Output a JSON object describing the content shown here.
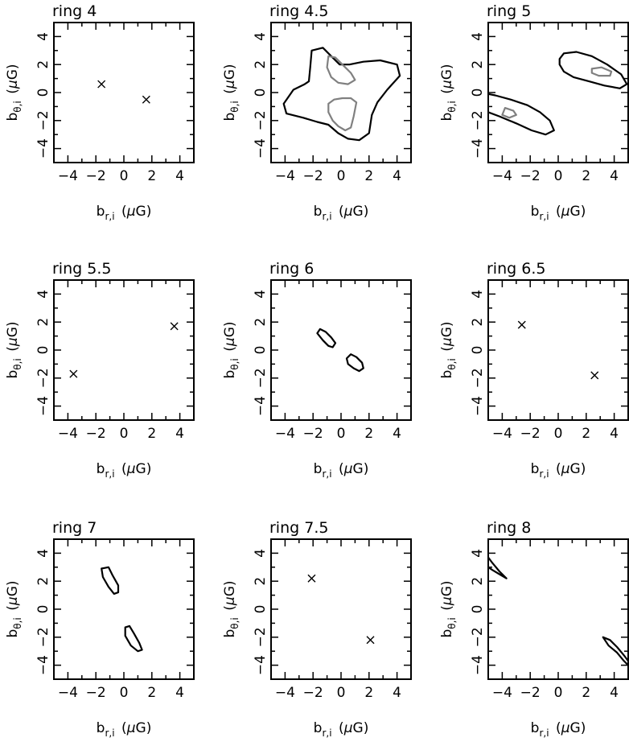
{
  "axis_label_parts": {
    "b": "b",
    "sub_r": "r,i",
    "sub_theta": "θ,i",
    "unit_open": "(",
    "mu": "μ",
    "unit_G": "G",
    "unit_close": ")"
  },
  "chart_data": [
    {
      "type": "contour",
      "title": "ring 4",
      "xlabel": "b_r,i (μG)",
      "ylabel": "b_θ,i (μG)",
      "xlim": [
        -5,
        5
      ],
      "ylim": [
        -5,
        5
      ],
      "xticks": [
        -4,
        -2,
        0,
        2,
        4
      ],
      "yticks": [
        -4,
        -2,
        0,
        2,
        4
      ],
      "markers": [
        {
          "x": -1.6,
          "y": 0.6
        },
        {
          "x": 1.6,
          "y": -0.5
        }
      ],
      "contours": []
    },
    {
      "type": "contour",
      "title": "ring 4.5",
      "xlabel": "b_r,i (μG)",
      "ylabel": "b_θ,i (μG)",
      "xlim": [
        -5,
        5
      ],
      "ylim": [
        -5,
        5
      ],
      "xticks": [
        -4,
        -2,
        0,
        2,
        4
      ],
      "yticks": [
        -4,
        -2,
        0,
        2,
        4
      ],
      "markers": [],
      "contours": [
        {
          "level": "outer",
          "color": "#000000",
          "points": [
            [
              -2.1,
              3.0
            ],
            [
              -1.3,
              3.2
            ],
            [
              -0.7,
              2.6
            ],
            [
              -0.1,
              2.0
            ],
            [
              0.6,
              2.0
            ],
            [
              1.6,
              2.2
            ],
            [
              2.8,
              2.3
            ],
            [
              4.0,
              2.0
            ],
            [
              4.2,
              1.2
            ],
            [
              3.3,
              0.2
            ],
            [
              2.6,
              -0.7
            ],
            [
              2.2,
              -1.6
            ],
            [
              2.0,
              -2.9
            ],
            [
              1.3,
              -3.4
            ],
            [
              0.5,
              -3.3
            ],
            [
              -0.2,
              -2.9
            ],
            [
              -0.9,
              -2.3
            ],
            [
              -1.7,
              -2.1
            ],
            [
              -2.7,
              -1.8
            ],
            [
              -3.9,
              -1.5
            ],
            [
              -4.1,
              -0.8
            ],
            [
              -3.4,
              0.2
            ],
            [
              -2.6,
              0.6
            ],
            [
              -2.3,
              0.8
            ],
            [
              -2.2,
              1.8
            ],
            [
              -2.1,
              3.0
            ]
          ]
        },
        {
          "level": "inner",
          "color": "#808080",
          "points": [
            [
              -0.9,
              2.6
            ],
            [
              -0.4,
              2.5
            ],
            [
              0.1,
              2.0
            ],
            [
              0.7,
              1.4
            ],
            [
              1.0,
              0.9
            ],
            [
              0.5,
              0.6
            ],
            [
              -0.2,
              0.7
            ],
            [
              -0.7,
              1.1
            ],
            [
              -1.0,
              1.8
            ],
            [
              -0.9,
              2.6
            ]
          ]
        },
        {
          "level": "inner",
          "color": "#808080",
          "points": [
            [
              -0.9,
              -0.8
            ],
            [
              -0.5,
              -0.5
            ],
            [
              0.1,
              -0.4
            ],
            [
              0.7,
              -0.4
            ],
            [
              1.1,
              -0.7
            ],
            [
              0.9,
              -1.7
            ],
            [
              0.7,
              -2.5
            ],
            [
              0.3,
              -2.7
            ],
            [
              -0.2,
              -2.4
            ],
            [
              -0.6,
              -2.0
            ],
            [
              -0.9,
              -1.4
            ],
            [
              -0.9,
              -0.8
            ]
          ]
        }
      ]
    },
    {
      "type": "contour",
      "title": "ring 5",
      "xlabel": "b_r,i (μG)",
      "ylabel": "b_θ,i (μG)",
      "xlim": [
        -5,
        5
      ],
      "ylim": [
        -5,
        5
      ],
      "xticks": [
        -4,
        -2,
        0,
        2,
        4
      ],
      "yticks": [
        -4,
        -2,
        0,
        2,
        4
      ],
      "markers": [],
      "contours": [
        {
          "level": "outer",
          "color": "#000000",
          "points": [
            [
              0.1,
              2.4
            ],
            [
              0.4,
              2.8
            ],
            [
              1.3,
              2.9
            ],
            [
              2.4,
              2.6
            ],
            [
              3.5,
              2.0
            ],
            [
              4.5,
              1.3
            ],
            [
              4.9,
              0.6
            ],
            [
              4.4,
              0.3
            ],
            [
              3.3,
              0.5
            ],
            [
              2.2,
              0.8
            ],
            [
              1.1,
              1.1
            ],
            [
              0.4,
              1.5
            ],
            [
              0.1,
              2.0
            ],
            [
              0.1,
              2.4
            ]
          ]
        },
        {
          "level": "inner",
          "color": "#808080",
          "points": [
            [
              2.4,
              1.7
            ],
            [
              3.1,
              1.8
            ],
            [
              3.8,
              1.5
            ],
            [
              3.7,
              1.2
            ],
            [
              2.9,
              1.2
            ],
            [
              2.4,
              1.4
            ],
            [
              2.4,
              1.7
            ]
          ]
        },
        {
          "level": "outer",
          "color": "#000000",
          "points": [
            [
              -5.0,
              -0.1
            ],
            [
              -4.5,
              -0.2
            ],
            [
              -3.4,
              -0.5
            ],
            [
              -2.2,
              -0.9
            ],
            [
              -1.3,
              -1.4
            ],
            [
              -0.6,
              -2.0
            ],
            [
              -0.3,
              -2.7
            ],
            [
              -0.9,
              -3.0
            ],
            [
              -1.9,
              -2.7
            ],
            [
              -3.0,
              -2.2
            ],
            [
              -4.2,
              -1.7
            ],
            [
              -5.0,
              -1.4
            ]
          ]
        },
        {
          "level": "inner",
          "color": "#808080",
          "points": [
            [
              -3.8,
              -1.1
            ],
            [
              -3.2,
              -1.3
            ],
            [
              -3.0,
              -1.6
            ],
            [
              -3.5,
              -1.8
            ],
            [
              -4.0,
              -1.6
            ],
            [
              -3.8,
              -1.1
            ]
          ]
        }
      ]
    },
    {
      "type": "contour",
      "title": "ring 5.5",
      "xlabel": "b_r,i (μG)",
      "ylabel": "b_θ,i (μG)",
      "xlim": [
        -5,
        5
      ],
      "ylim": [
        -5,
        5
      ],
      "xticks": [
        -4,
        -2,
        0,
        2,
        4
      ],
      "yticks": [
        -4,
        -2,
        0,
        2,
        4
      ],
      "markers": [
        {
          "x": 3.6,
          "y": 1.7
        },
        {
          "x": -3.6,
          "y": -1.7
        }
      ],
      "contours": []
    },
    {
      "type": "contour",
      "title": "ring 6",
      "xlabel": "b_r,i (μG)",
      "ylabel": "b_θ,i (μG)",
      "xlim": [
        -5,
        5
      ],
      "ylim": [
        -5,
        5
      ],
      "xticks": [
        -4,
        -2,
        0,
        2,
        4
      ],
      "yticks": [
        -4,
        -2,
        0,
        2,
        4
      ],
      "markers": [],
      "contours": [
        {
          "level": "outer",
          "color": "#000000",
          "points": [
            [
              -1.7,
              1.2
            ],
            [
              -1.5,
              1.5
            ],
            [
              -1.1,
              1.3
            ],
            [
              -0.7,
              0.9
            ],
            [
              -0.4,
              0.5
            ],
            [
              -0.6,
              0.2
            ],
            [
              -0.9,
              0.3
            ],
            [
              -1.3,
              0.7
            ],
            [
              -1.7,
              1.2
            ]
          ]
        },
        {
          "level": "outer",
          "color": "#000000",
          "points": [
            [
              0.4,
              -0.6
            ],
            [
              0.7,
              -0.3
            ],
            [
              1.1,
              -0.5
            ],
            [
              1.5,
              -0.9
            ],
            [
              1.6,
              -1.3
            ],
            [
              1.3,
              -1.5
            ],
            [
              0.9,
              -1.3
            ],
            [
              0.5,
              -1.0
            ],
            [
              0.4,
              -0.6
            ]
          ]
        }
      ]
    },
    {
      "type": "contour",
      "title": "ring 6.5",
      "xlabel": "b_r,i (μG)",
      "ylabel": "b_θ,i (μG)",
      "xlim": [
        -5,
        5
      ],
      "ylim": [
        -5,
        5
      ],
      "xticks": [
        -4,
        -2,
        0,
        2,
        4
      ],
      "yticks": [
        -4,
        -2,
        0,
        2,
        4
      ],
      "markers": [
        {
          "x": -2.6,
          "y": 1.8
        },
        {
          "x": 2.6,
          "y": -1.8
        }
      ],
      "contours": []
    },
    {
      "type": "contour",
      "title": "ring 7",
      "xlabel": "b_r,i (μG)",
      "ylabel": "b_θ,i (μG)",
      "xlim": [
        -5,
        5
      ],
      "ylim": [
        -5,
        5
      ],
      "xticks": [
        -4,
        -2,
        0,
        2,
        4
      ],
      "yticks": [
        -4,
        -2,
        0,
        2,
        4
      ],
      "markers": [],
      "contours": [
        {
          "level": "outer",
          "color": "#000000",
          "points": [
            [
              -1.6,
              2.9
            ],
            [
              -1.1,
              3.0
            ],
            [
              -0.8,
              2.4
            ],
            [
              -0.4,
              1.7
            ],
            [
              -0.4,
              1.2
            ],
            [
              -0.7,
              1.1
            ],
            [
              -1.1,
              1.6
            ],
            [
              -1.5,
              2.3
            ],
            [
              -1.6,
              2.9
            ]
          ]
        },
        {
          "level": "outer",
          "color": "#000000",
          "points": [
            [
              0.1,
              -1.3
            ],
            [
              0.4,
              -1.2
            ],
            [
              0.7,
              -1.7
            ],
            [
              1.1,
              -2.4
            ],
            [
              1.3,
              -2.9
            ],
            [
              1.0,
              -3.0
            ],
            [
              0.5,
              -2.6
            ],
            [
              0.1,
              -1.9
            ],
            [
              0.1,
              -1.3
            ]
          ]
        }
      ]
    },
    {
      "type": "contour",
      "title": "ring 7.5",
      "xlabel": "b_r,i (μG)",
      "ylabel": "b_θ,i (μG)",
      "xlim": [
        -5,
        5
      ],
      "ylim": [
        -5,
        5
      ],
      "xticks": [
        -4,
        -2,
        0,
        2,
        4
      ],
      "yticks": [
        -4,
        -2,
        0,
        2,
        4
      ],
      "markers": [
        {
          "x": -2.1,
          "y": 2.2
        },
        {
          "x": 2.1,
          "y": -2.2
        }
      ],
      "contours": []
    },
    {
      "type": "contour",
      "title": "ring 8",
      "xlabel": "b_r,i (μG)",
      "ylabel": "b_θ,i (μG)",
      "xlim": [
        -5,
        5
      ],
      "ylim": [
        -5,
        5
      ],
      "xticks": [
        -4,
        -2,
        0,
        2,
        4
      ],
      "yticks": [
        -4,
        -2,
        0,
        2,
        4
      ],
      "markers": [],
      "contours": [
        {
          "level": "outer",
          "color": "#000000",
          "points": [
            [
              -5.0,
              3.7
            ],
            [
              -4.7,
              3.3
            ],
            [
              -4.2,
              2.7
            ],
            [
              -3.7,
              2.2
            ],
            [
              -4.2,
              2.5
            ],
            [
              -4.7,
              2.8
            ],
            [
              -5.0,
              3.0
            ]
          ]
        },
        {
          "level": "outer",
          "color": "#000000",
          "points": [
            [
              5.0,
              -3.7
            ],
            [
              4.7,
              -3.3
            ],
            [
              4.2,
              -2.7
            ],
            [
              3.7,
              -2.2
            ],
            [
              3.2,
              -2.0
            ],
            [
              3.6,
              -2.6
            ],
            [
              4.2,
              -3.1
            ],
            [
              4.7,
              -3.7
            ],
            [
              5.0,
              -4.0
            ]
          ]
        }
      ]
    }
  ]
}
